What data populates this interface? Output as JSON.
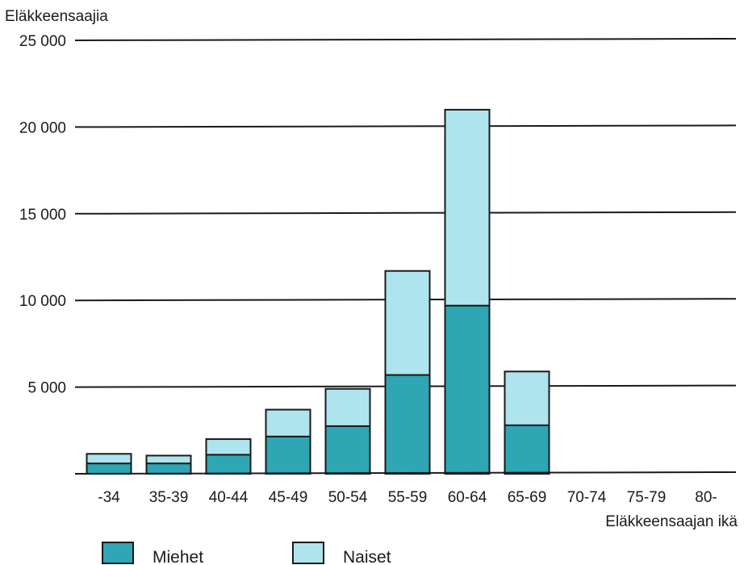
{
  "chart_data": {
    "type": "bar",
    "stacked": true,
    "ylabel": "Eläkkeensaajia",
    "xlabel": "Eläkkeensaajan ikä",
    "categories": [
      "-34",
      "35-39",
      "40-44",
      "45-49",
      "50-54",
      "55-59",
      "60-64",
      "65-69",
      "70-74",
      "75-79",
      "80-"
    ],
    "series": [
      {
        "name": "Miehet",
        "color": "#2ea6b4",
        "values": [
          600,
          600,
          1100,
          2150,
          2750,
          5700,
          9700,
          2800,
          0,
          0,
          0
        ]
      },
      {
        "name": "Naiset",
        "color": "#aee4ee",
        "values": [
          550,
          450,
          900,
          1550,
          2150,
          6000,
          11300,
          3100,
          0,
          0,
          0
        ]
      }
    ],
    "ylim": [
      0,
      25000
    ],
    "yticks": [
      {
        "value": 5000,
        "label": "5 000"
      },
      {
        "value": 10000,
        "label": "10 000"
      },
      {
        "value": 15000,
        "label": "15 000"
      },
      {
        "value": 20000,
        "label": "20 000"
      },
      {
        "value": 25000,
        "label": "25 000"
      }
    ],
    "grid": true,
    "legend_position": "bottom"
  }
}
